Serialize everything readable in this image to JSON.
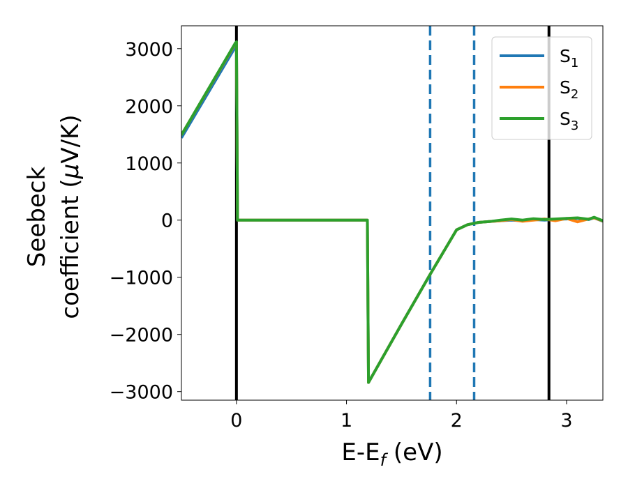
{
  "chart_data": {
    "type": "line",
    "xlabel": "E-E",
    "xlabel_sub": "f",
    "xlabel_unit": " (eV)",
    "ylabel_line1": "Seebeck",
    "ylabel_line2": "coefficient  (",
    "ylabel_mu": "μ",
    "ylabel_unit": "V/K)",
    "xlim": [
      -0.5,
      3.33
    ],
    "ylim": [
      -3150,
      3400
    ],
    "xticks": [
      0,
      1,
      2,
      3
    ],
    "xtick_labels": [
      "0",
      "1",
      "2",
      "3"
    ],
    "yticks": [
      3000,
      2000,
      1000,
      0,
      -1000,
      -2000,
      -3000
    ],
    "ytick_labels": [
      "3000",
      "2000",
      "1000",
      "0",
      "−1000",
      "−2000",
      "−3000"
    ],
    "legend_position": "top-right",
    "vertical_lines": [
      {
        "x": 0.0,
        "style": "solid",
        "color": "#000000"
      },
      {
        "x": 1.76,
        "style": "dashed",
        "color": "#1f77b4"
      },
      {
        "x": 2.16,
        "style": "dashed",
        "color": "#1f77b4"
      },
      {
        "x": 2.84,
        "style": "solid",
        "color": "#000000"
      }
    ],
    "series": [
      {
        "name": "S",
        "subscript": "1",
        "color": "#1f77b4",
        "x": [
          -0.5,
          -0.01,
          0.0,
          0.01,
          0.5,
          1.0,
          1.19,
          1.2,
          1.5,
          1.76,
          2.0,
          2.1,
          2.2,
          2.3,
          2.4,
          2.5,
          2.6,
          2.7,
          2.8,
          2.9,
          3.0,
          3.1,
          3.2,
          3.25,
          3.33
        ],
        "y": [
          1440,
          3030,
          3050,
          0,
          0,
          0,
          0,
          -2840,
          -1820,
          -950,
          -170,
          -80,
          -40,
          -25,
          -10,
          0,
          -10,
          10,
          0,
          15,
          20,
          30,
          10,
          40,
          -20
        ]
      },
      {
        "name": "S",
        "subscript": "2",
        "color": "#ff7f0e",
        "x": [
          -0.5,
          -0.01,
          0.0,
          0.01,
          0.5,
          1.0,
          1.19,
          1.2,
          1.5,
          1.76,
          2.0,
          2.1,
          2.2,
          2.3,
          2.4,
          2.5,
          2.6,
          2.7,
          2.8,
          2.9,
          3.0,
          3.1,
          3.2,
          3.25,
          3.33
        ],
        "y": [
          1490,
          3090,
          3110,
          0,
          0,
          0,
          0,
          -2840,
          -1820,
          -950,
          -170,
          -80,
          -40,
          -25,
          -10,
          10,
          -20,
          0,
          20,
          -10,
          30,
          -30,
          20,
          40,
          -15
        ]
      },
      {
        "name": "S",
        "subscript": "3",
        "color": "#2ca02c",
        "x": [
          -0.5,
          -0.01,
          0.0,
          0.01,
          0.5,
          1.0,
          1.19,
          1.2,
          1.5,
          1.76,
          2.0,
          2.1,
          2.2,
          2.3,
          2.4,
          2.5,
          2.6,
          2.7,
          2.8,
          2.9,
          3.0,
          3.1,
          3.2,
          3.25,
          3.33
        ],
        "y": [
          1490,
          3100,
          3120,
          0,
          0,
          0,
          0,
          -2840,
          -1820,
          -950,
          -170,
          -80,
          -40,
          -25,
          0,
          20,
          0,
          25,
          10,
          20,
          30,
          40,
          15,
          50,
          -10
        ]
      }
    ]
  }
}
